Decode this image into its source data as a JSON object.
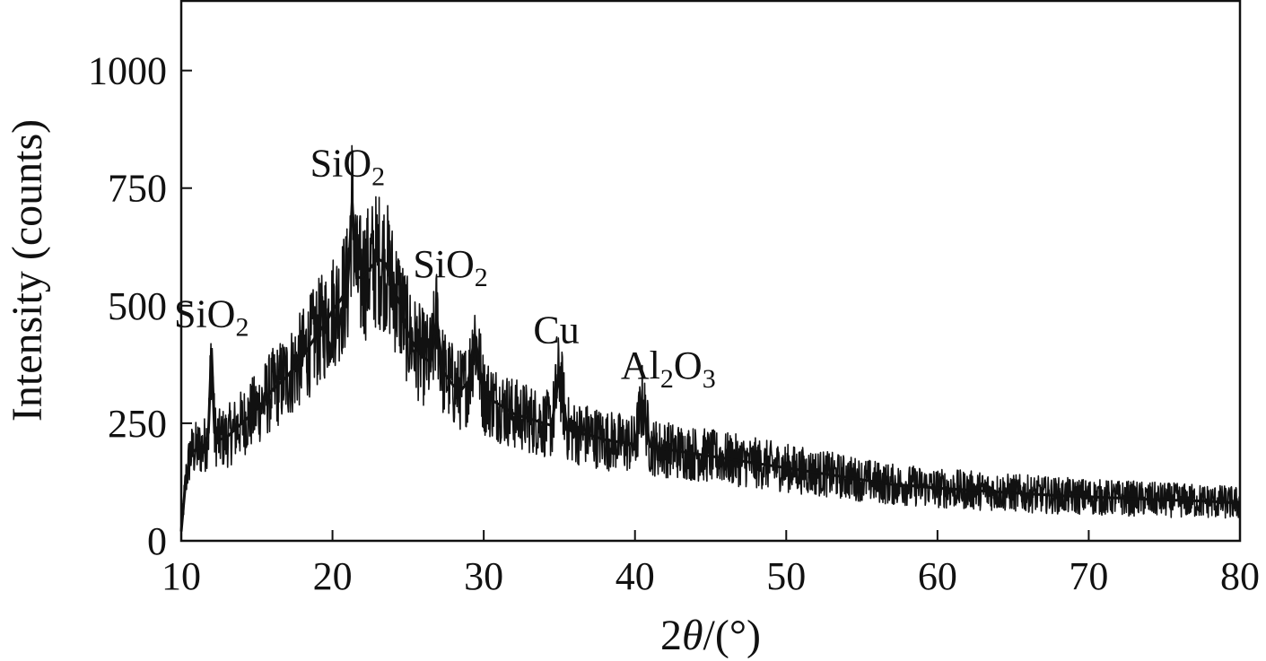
{
  "chart_data": {
    "type": "line",
    "title": "",
    "xlabel": "2θ/(°)",
    "xlabel_parts": {
      "prefix": "2",
      "symbol": "θ",
      "suffix": "/(°)"
    },
    "ylabel": "Intensity (counts)",
    "xlim": [
      10,
      80
    ],
    "ylim": [
      0,
      1150
    ],
    "xticks": [
      10,
      20,
      30,
      40,
      50,
      60,
      70,
      80
    ],
    "yticks": [
      0,
      250,
      500,
      750,
      1000
    ],
    "grid": false,
    "legend": "none",
    "line_color": "#111111",
    "series": [
      {
        "x": [
          10,
          10.3,
          10.6,
          11,
          11.5,
          11.8,
          12,
          12.2,
          12.5,
          13,
          14,
          15,
          16,
          17,
          18,
          19,
          19.5,
          20,
          20.5,
          21,
          21.3,
          21.6,
          22,
          22.5,
          23,
          23.5,
          24,
          24.5,
          25,
          25.5,
          26,
          26.5,
          26.9,
          27.3,
          28,
          28.5,
          29,
          29.4,
          30,
          31,
          32,
          33,
          34,
          34.5,
          35,
          35.5,
          36,
          37,
          38,
          39,
          40,
          40.5,
          41,
          42,
          43,
          44,
          45,
          46,
          47,
          48,
          49,
          50,
          51,
          52,
          53,
          54,
          55,
          56,
          57,
          58,
          59,
          60,
          61,
          62,
          63,
          64,
          65,
          66,
          67,
          68,
          69,
          70,
          71,
          72,
          73,
          74,
          75,
          76,
          77,
          78,
          79,
          80
        ],
        "y": [
          20,
          130,
          185,
          195,
          200,
          230,
          410,
          230,
          215,
          220,
          250,
          280,
          320,
          350,
          390,
          440,
          460,
          490,
          510,
          540,
          720,
          560,
          560,
          580,
          600,
          590,
          540,
          500,
          440,
          410,
          390,
          380,
          470,
          360,
          330,
          320,
          340,
          440,
          310,
          290,
          270,
          260,
          250,
          245,
          360,
          240,
          230,
          225,
          215,
          210,
          205,
          300,
          200,
          195,
          190,
          185,
          180,
          175,
          170,
          165,
          160,
          155,
          150,
          145,
          140,
          135,
          130,
          125,
          120,
          118,
          115,
          112,
          110,
          108,
          106,
          104,
          102,
          100,
          98,
          96,
          95,
          94,
          92,
          91,
          90,
          88,
          87,
          86,
          85,
          84,
          82,
          80
        ]
      }
    ],
    "annotations": [
      {
        "base": "SiO",
        "sub": "2",
        "rest": "",
        "x": 12,
        "y": 440
      },
      {
        "base": "SiO",
        "sub": "2",
        "rest": "",
        "x": 21,
        "y": 760
      },
      {
        "base": "SiO",
        "sub": "2",
        "rest": "",
        "x": 27.8,
        "y": 545
      },
      {
        "base": "Cu",
        "sub": "",
        "rest": "",
        "x": 34.8,
        "y": 405
      },
      {
        "base": "Al",
        "sub": "2",
        "rest": "O",
        "sub2": "3",
        "x": 42.2,
        "y": 330
      }
    ]
  }
}
